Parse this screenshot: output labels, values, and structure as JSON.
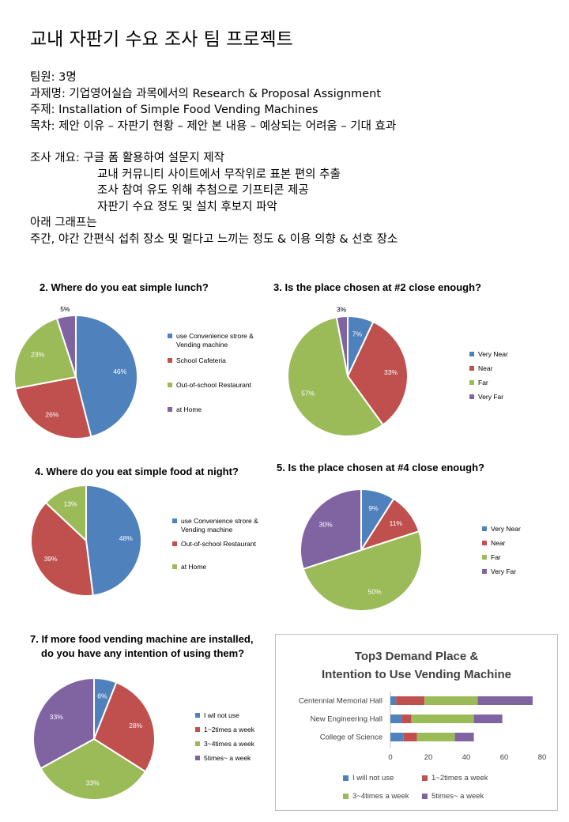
{
  "header": {
    "title": "교내 자판기 수요 조사 팀 프로젝트"
  },
  "info": {
    "members": "팀원: 3명",
    "course": "과제명: 기업영어실습 과목에서의 Research & Proposal Assignment",
    "topic": "주제: Installation of Simple Food Vending Machines",
    "contents": "목차: 제안 이유 – 자판기 현황 – 제안 본 내용 – 예상되는 어려움 – 기대 효과",
    "survey_1": "조사 개요: 구글 폼 활용하여 설문지 제작",
    "survey_2": "교내 커뮤니티 사이트에서 무작위로 표본 편의 추출",
    "survey_3": "조사 참여 유도 위해 추첨으로 기프티콘 제공",
    "survey_4": "자판기 수요 정도 및 설치 후보지 파악",
    "graphs_intro": "아래 그래프는",
    "graphs_desc": "주간, 야간 간편식 섭취 장소 및 멀다고 느끼는 정도 & 이용 의향 & 선호 장소"
  },
  "colors": {
    "blue": "#4f81bd",
    "red": "#c0504d",
    "green": "#9bbb59",
    "purple": "#8064a2"
  },
  "chart_data": [
    {
      "type": "pie",
      "title": "2. Where do you eat simple lunch?",
      "labels": [
        "use Convenience strore & Vending machine",
        "School Cafeteria",
        "Out-of-school Restaurant",
        "at Home"
      ],
      "values": [
        46,
        26,
        23,
        5
      ],
      "value_labels": [
        "46%",
        "26%",
        "23%",
        "5%"
      ],
      "colors": [
        "#4f81bd",
        "#c0504d",
        "#9bbb59",
        "#8064a2"
      ],
      "legend": "right"
    },
    {
      "type": "pie",
      "title": "3. Is the place chosen at #2 close enough?",
      "labels": [
        "Very Near",
        "Near",
        "Far",
        "Very Far"
      ],
      "values": [
        7,
        33,
        57,
        3
      ],
      "value_labels": [
        "7%",
        "33%",
        "57%",
        "3%"
      ],
      "colors": [
        "#4f81bd",
        "#c0504d",
        "#9bbb59",
        "#8064a2"
      ],
      "legend": "right"
    },
    {
      "type": "pie",
      "title": "4. Where do you eat simple food at night?",
      "labels": [
        "use Convenience strore & Vending machine",
        "Out-of-school Restaurant",
        "at Home"
      ],
      "values": [
        48,
        39,
        13
      ],
      "value_labels": [
        "48%",
        "39%",
        "13%"
      ],
      "colors": [
        "#4f81bd",
        "#c0504d",
        "#9bbb59"
      ],
      "legend": "right"
    },
    {
      "type": "pie",
      "title": "5. Is the place chosen at #4 close enough?",
      "labels": [
        "Very Near",
        "Near",
        "Far",
        "Very Far"
      ],
      "values": [
        9,
        11,
        50,
        30
      ],
      "value_labels": [
        "9%",
        "11%",
        "50%",
        "30%"
      ],
      "colors": [
        "#4f81bd",
        "#c0504d",
        "#9bbb59",
        "#8064a2"
      ],
      "legend": "right"
    },
    {
      "type": "pie",
      "title": "7. If more food vending machine are installed, do you have any intention of using them?",
      "title_lines": [
        "7. If more food vending machine are installed,",
        "do you have any intention of using them?"
      ],
      "labels": [
        "I wil not use",
        "1~2times a week",
        "3~4times a week",
        "5times~ a week"
      ],
      "values": [
        6,
        28,
        33,
        33
      ],
      "value_labels": [
        "6%",
        "28%",
        "33%",
        "33%"
      ],
      "colors": [
        "#4f81bd",
        "#c0504d",
        "#9bbb59",
        "#8064a2"
      ],
      "legend": "right"
    },
    {
      "type": "bar",
      "orientation": "horizontal",
      "stacked": true,
      "title": "Top3 Demand Place & Intention to Use Vending Machine",
      "title_lines": [
        "Top3 Demand Place &",
        "Intention to Use Vending Machine"
      ],
      "categories": [
        "Centennial Memorial Hall",
        "New Engineering Hall",
        "College of Science"
      ],
      "series": [
        {
          "name": "I will not use",
          "color": "#4f81bd",
          "values": [
            3,
            6,
            7
          ]
        },
        {
          "name": "1~2times a week",
          "color": "#c0504d",
          "values": [
            15,
            5,
            7
          ]
        },
        {
          "name": "3~4times a week",
          "color": "#9bbb59",
          "values": [
            28,
            33,
            20
          ]
        },
        {
          "name": "5times~ a week",
          "color": "#8064a2",
          "values": [
            29,
            15,
            10
          ]
        }
      ],
      "xlim": [
        0,
        80
      ],
      "xticks": [
        "0",
        "20",
        "40",
        "60",
        "80"
      ],
      "grid": false,
      "legend": "bottom"
    }
  ]
}
